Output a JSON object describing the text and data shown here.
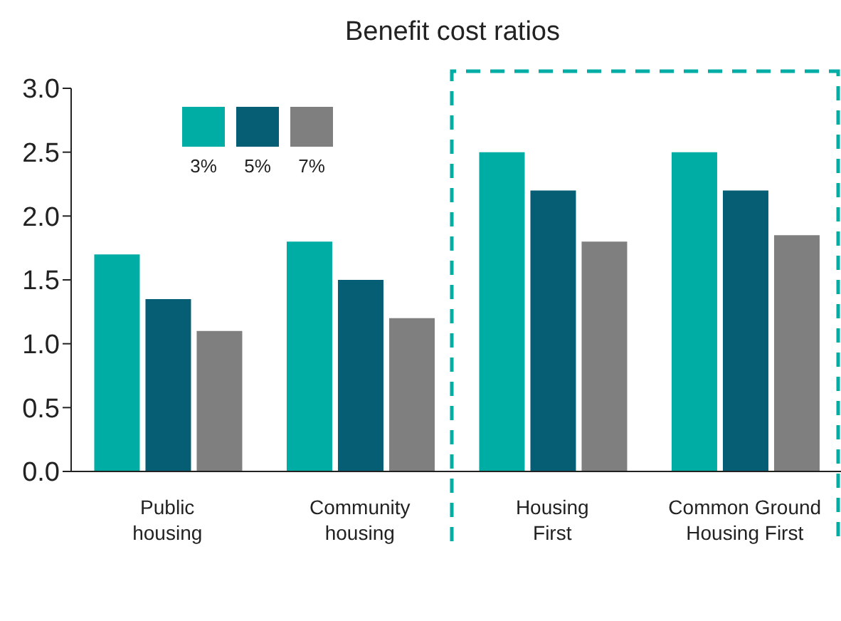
{
  "chart_data": {
    "type": "bar",
    "title": "Benefit cost ratios",
    "categories": [
      "Public housing",
      "Community housing",
      "Housing First",
      "Common Ground Housing First"
    ],
    "series": [
      {
        "name": "3%",
        "color": "#00ada5",
        "values": [
          1.7,
          1.8,
          2.5,
          2.5
        ]
      },
      {
        "name": "5%",
        "color": "#055e73",
        "values": [
          1.35,
          1.5,
          2.2,
          2.2
        ]
      },
      {
        "name": "7%",
        "color": "#7f7f7f",
        "values": [
          1.1,
          1.2,
          1.8,
          1.85
        ]
      }
    ],
    "ylim": [
      0,
      3
    ],
    "yticks": [
      {
        "value": 0,
        "label": "0.0"
      },
      {
        "value": 0.5,
        "label": "0.5"
      },
      {
        "value": 1,
        "label": "1.0"
      },
      {
        "value": 1.5,
        "label": "1.5"
      },
      {
        "value": 2,
        "label": "2.0"
      },
      {
        "value": 2.5,
        "label": "2.5"
      },
      {
        "value": 3,
        "label": "3.0"
      }
    ],
    "grid": false,
    "legend": "top left"
  }
}
